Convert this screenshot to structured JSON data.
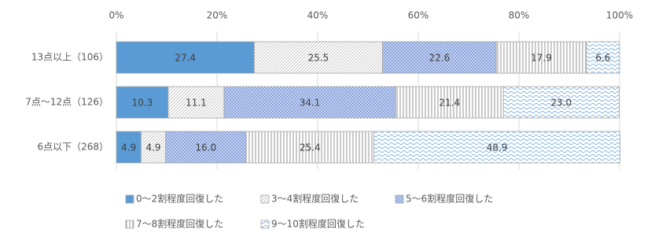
{
  "chart_data": {
    "type": "stacked-barh",
    "categories": [
      "13点以上（106）",
      "7点～12点（126）",
      "6点以下（268）"
    ],
    "series": [
      {
        "name": "0～2割程度回復した",
        "color": "#5b9bd5",
        "pattern": "solid",
        "values": [
          27.4,
          10.3,
          4.9
        ],
        "value_labels": [
          "27.4",
          "10.3",
          "4.9"
        ]
      },
      {
        "name": "3～4割程度回復した",
        "color": "#bfbfbf",
        "pattern": "diagonal",
        "values": [
          25.5,
          11.1,
          4.9
        ],
        "value_labels": [
          "25.5",
          "11.1",
          "4.9"
        ]
      },
      {
        "name": "5～6割程度回復した",
        "color": "#8fa8e0",
        "pattern": "dots",
        "values": [
          22.6,
          34.1,
          16.0
        ],
        "value_labels": [
          "22.6",
          "34.1",
          "16.0"
        ]
      },
      {
        "name": "7～8割程度回復した",
        "color": "#a6a6a6",
        "pattern": "vertical",
        "values": [
          17.9,
          21.4,
          25.4
        ],
        "value_labels": [
          "17.9",
          "21.4",
          "25.4"
        ]
      },
      {
        "name": "9～10割程度回復した",
        "color": "#7fb3e0",
        "pattern": "wave",
        "values": [
          6.6,
          23.0,
          48.9
        ],
        "value_labels": [
          "6.6",
          "23.0",
          "48.9"
        ]
      }
    ],
    "xlim": [
      0,
      100
    ],
    "xticks": [
      {
        "value": 0,
        "label": "0%"
      },
      {
        "value": 20,
        "label": "20%"
      },
      {
        "value": 40,
        "label": "40%"
      },
      {
        "value": 60,
        "label": "60%"
      },
      {
        "value": 80,
        "label": "80%"
      },
      {
        "value": 100,
        "label": "100%"
      }
    ],
    "grid": true,
    "legend": "bottom"
  }
}
